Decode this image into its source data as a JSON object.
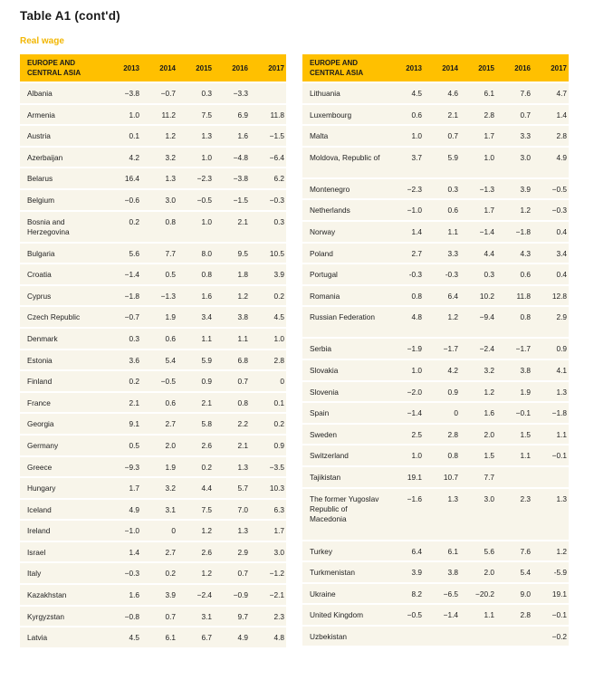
{
  "title": "Table A1  (cont'd)",
  "subtitle": "Real wage",
  "header": {
    "region": "EUROPE AND CENTRAL ASIA",
    "years": [
      "2013",
      "2014",
      "2015",
      "2016",
      "2017"
    ]
  },
  "left_rows": [
    {
      "country": "Albania",
      "values": [
        "−3.8",
        "−0.7",
        "0.3",
        "−3.3",
        ""
      ]
    },
    {
      "country": "Armenia",
      "values": [
        "1.0",
        "11.2",
        "7.5",
        "6.9",
        "11.8"
      ]
    },
    {
      "country": "Austria",
      "values": [
        "0.1",
        "1.2",
        "1.3",
        "1.6",
        "−1.5"
      ]
    },
    {
      "country": "Azerbaijan",
      "values": [
        "4.2",
        "3.2",
        "1.0",
        "−4.8",
        "−6.4"
      ]
    },
    {
      "country": "Belarus",
      "values": [
        "16.4",
        "1.3",
        "−2.3",
        "−3.8",
        "6.2"
      ]
    },
    {
      "country": "Belgium",
      "values": [
        "−0.6",
        "3.0",
        "−0.5",
        "−1.5",
        "−0.3"
      ]
    },
    {
      "country": "Bosnia and Herzegovina",
      "values": [
        "0.2",
        "0.8",
        "1.0",
        "2.1",
        "0.3"
      ]
    },
    {
      "country": "Bulgaria",
      "values": [
        "5.6",
        "7.7",
        "8.0",
        "9.5",
        "10.5"
      ]
    },
    {
      "country": "Croatia",
      "values": [
        "−1.4",
        "0.5",
        "0.8",
        "1.8",
        "3.9"
      ]
    },
    {
      "country": "Cyprus",
      "values": [
        "−1.8",
        "−1.3",
        "1.6",
        "1.2",
        "0.2"
      ]
    },
    {
      "country": "Czech Republic",
      "values": [
        "−0.7",
        "1.9",
        "3.4",
        "3.8",
        "4.5"
      ]
    },
    {
      "country": "Denmark",
      "values": [
        "0.3",
        "0.6",
        "1.1",
        "1.1",
        "1.0"
      ]
    },
    {
      "country": "Estonia",
      "values": [
        "3.6",
        "5.4",
        "5.9",
        "6.8",
        "2.8"
      ]
    },
    {
      "country": "Finland",
      "values": [
        "0.2",
        "−0.5",
        "0.9",
        "0.7",
        "0"
      ]
    },
    {
      "country": "France",
      "values": [
        "2.1",
        "0.6",
        "2.1",
        "0.8",
        "0.1"
      ]
    },
    {
      "country": "Georgia",
      "values": [
        "9.1",
        "2.7",
        "5.8",
        "2.2",
        "0.2"
      ]
    },
    {
      "country": "Germany",
      "values": [
        "0.5",
        "2.0",
        "2.6",
        "2.1",
        "0.9"
      ]
    },
    {
      "country": "Greece",
      "values": [
        "−9.3",
        "1.9",
        "0.2",
        "1.3",
        "−3.5"
      ]
    },
    {
      "country": "Hungary",
      "values": [
        "1.7",
        "3.2",
        "4.4",
        "5.7",
        "10.3"
      ]
    },
    {
      "country": "Iceland",
      "values": [
        "4.9",
        "3.1",
        "7.5",
        "7.0",
        "6.3"
      ]
    },
    {
      "country": "Ireland",
      "values": [
        "−1.0",
        "0",
        "1.2",
        "1.3",
        "1.7"
      ]
    },
    {
      "country": "Israel",
      "values": [
        "1.4",
        "2.7",
        "2.6",
        "2.9",
        "3.0"
      ]
    },
    {
      "country": "Italy",
      "values": [
        "−0.3",
        "0.2",
        "1.2",
        "0.7",
        "−1.2"
      ]
    },
    {
      "country": "Kazakhstan",
      "values": [
        "1.6",
        "3.9",
        "−2.4",
        "−0.9",
        "−2.1"
      ]
    },
    {
      "country": "Kyrgyzstan",
      "values": [
        "−0.8",
        "0.7",
        "3.1",
        "9.7",
        "2.3"
      ]
    },
    {
      "country": "Latvia",
      "values": [
        "4.5",
        "6.1",
        "6.7",
        "4.9",
        "4.8"
      ]
    }
  ],
  "right_rows": [
    {
      "country": "Lithuania",
      "values": [
        "4.5",
        "4.6",
        "6.1",
        "7.6",
        "4.7"
      ]
    },
    {
      "country": "Luxembourg",
      "values": [
        "0.6",
        "2.1",
        "2.8",
        "0.7",
        "1.4"
      ]
    },
    {
      "country": "Malta",
      "values": [
        "1.0",
        "0.7",
        "1.7",
        "3.3",
        "2.8"
      ]
    },
    {
      "country": "Moldova, Republic of",
      "values": [
        "3.7",
        "5.9",
        "1.0",
        "3.0",
        "4.9"
      ]
    },
    {
      "country": "Montenegro",
      "values": [
        "−2.3",
        "0.3",
        "−1.3",
        "3.9",
        "−0.5"
      ]
    },
    {
      "country": "Netherlands",
      "values": [
        "−1.0",
        "0.6",
        "1.7",
        "1.2",
        "−0.3"
      ]
    },
    {
      "country": "Norway",
      "values": [
        "1.4",
        "1.1",
        "−1.4",
        "−1.8",
        "0.4"
      ]
    },
    {
      "country": "Poland",
      "values": [
        "2.7",
        "3.3",
        "4.4",
        "4.3",
        "3.4"
      ]
    },
    {
      "country": "Portugal",
      "values": [
        "-0.3",
        "-0.3",
        "0.3",
        "0.6",
        "0.4"
      ]
    },
    {
      "country": "Romania",
      "values": [
        "0.8",
        "6.4",
        "10.2",
        "11.8",
        "12.8"
      ]
    },
    {
      "country": "Russian Federation",
      "values": [
        "4.8",
        "1.2",
        "−9.4",
        "0.8",
        "2.9"
      ]
    },
    {
      "country": "Serbia",
      "values": [
        "−1.9",
        "−1.7",
        "−2.4",
        "−1.7",
        "0.9"
      ]
    },
    {
      "country": "Slovakia",
      "values": [
        "1.0",
        "4.2",
        "3.2",
        "3.8",
        "4.1"
      ]
    },
    {
      "country": "Slovenia",
      "values": [
        "−2.0",
        "0.9",
        "1.2",
        "1.9",
        "1.3"
      ]
    },
    {
      "country": "Spain",
      "values": [
        "−1.4",
        "0",
        "1.6",
        "−0.1",
        "−1.8"
      ]
    },
    {
      "country": "Sweden",
      "values": [
        "2.5",
        "2.8",
        "2.0",
        "1.5",
        "1.1"
      ]
    },
    {
      "country": "Switzerland",
      "values": [
        "1.0",
        "0.8",
        "1.5",
        "1.1",
        "−0.1"
      ]
    },
    {
      "country": "Tajikistan",
      "values": [
        "19.1",
        "10.7",
        "7.7",
        "",
        ""
      ]
    },
    {
      "country": "The former Yugoslav Republic of Macedonia",
      "values": [
        "−1.6",
        "1.3",
        "3.0",
        "2.3",
        "1.3"
      ]
    },
    {
      "country": "Turkey",
      "values": [
        "6.4",
        "6.1",
        "5.6",
        "7.6",
        "1.2"
      ]
    },
    {
      "country": "Turkmenistan",
      "values": [
        "3.9",
        "3.8",
        "2.0",
        "5.4",
        "-5.9"
      ]
    },
    {
      "country": "Ukraine",
      "values": [
        "8.2",
        "−6.5",
        "−20.2",
        "9.0",
        "19.1"
      ]
    },
    {
      "country": "United Kingdom",
      "values": [
        "−0.5",
        "−1.4",
        "1.1",
        "2.8",
        "−0.1"
      ]
    },
    {
      "country": "Uzbekistan",
      "values": [
        "",
        "",
        "",
        "",
        "−0.2"
      ]
    }
  ],
  "colors": {
    "header_bg": "#ffc000",
    "row_bg": "#f8f5ea",
    "subtitle": "#f2b705"
  }
}
